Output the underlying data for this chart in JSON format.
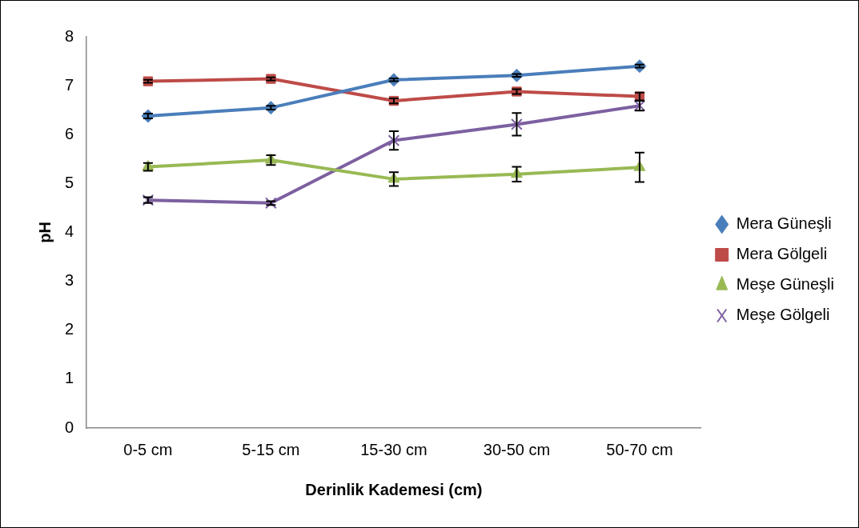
{
  "chart_data": {
    "type": "line",
    "xlabel": "Derinlik Kademesi (cm)",
    "ylabel": "pH",
    "categories": [
      "0-5 cm",
      "5-15 cm",
      "15-30 cm",
      "30-50 cm",
      "50-70 cm"
    ],
    "series": [
      {
        "name": "Mera Güneşli",
        "color": "#4a7ebb",
        "marker": "diamond",
        "values": [
          6.38,
          6.55,
          7.12,
          7.21,
          7.4
        ],
        "errors": [
          0.05,
          0.04,
          0.03,
          0.03,
          0.03
        ]
      },
      {
        "name": "Mera Gölgeli",
        "color": "#be4b48",
        "marker": "square",
        "values": [
          7.09,
          7.14,
          6.69,
          6.88,
          6.78
        ],
        "errors": [
          0.03,
          0.03,
          0.05,
          0.05,
          0.08
        ]
      },
      {
        "name": "Meşe Güneşli",
        "color": "#98b954",
        "marker": "triangle",
        "values": [
          5.34,
          5.48,
          5.09,
          5.19,
          5.33
        ],
        "errors": [
          0.08,
          0.1,
          0.14,
          0.15,
          0.3
        ]
      },
      {
        "name": "Meşe Gölgeli",
        "color": "#7d60a0",
        "marker": "cross",
        "values": [
          4.66,
          4.6,
          5.88,
          6.21,
          6.59
        ],
        "errors": [
          0.06,
          0.04,
          0.19,
          0.23,
          0.1
        ]
      }
    ],
    "ylim": [
      0,
      8
    ],
    "yticks": [
      0,
      1,
      2,
      3,
      4,
      5,
      6,
      7,
      8
    ],
    "grid": false,
    "legend": "right",
    "line_style": "solid"
  }
}
